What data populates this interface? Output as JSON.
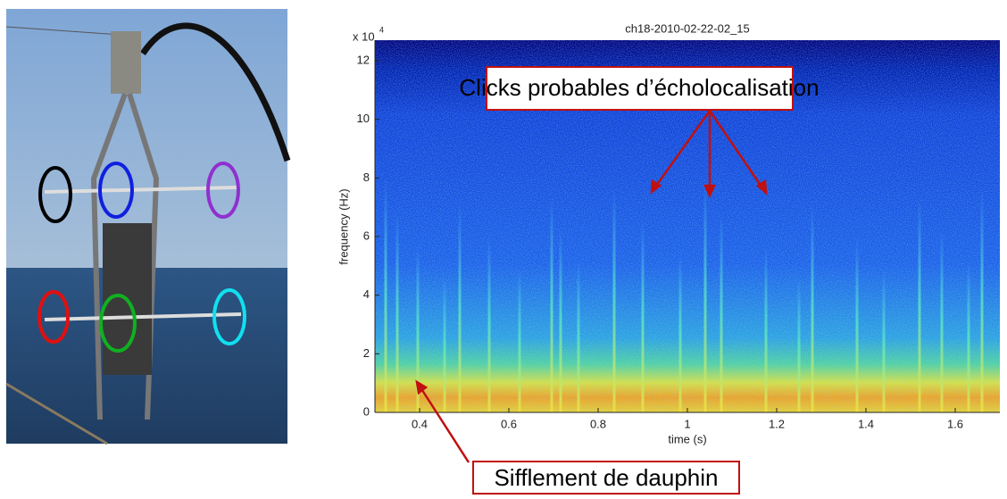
{
  "chart_data": {
    "type": "spectrogram",
    "title": "ch18-2010-02-22-02_15",
    "xlabel": "time (s)",
    "ylabel": "frequency (Hz)",
    "y_multiplier": "x 10",
    "y_multiplier_exponent": "4",
    "xlim": [
      0.3,
      1.7
    ],
    "ylim": [
      0,
      12.7
    ],
    "xticks": [
      0.4,
      0.6,
      0.8,
      1,
      1.2,
      1.4,
      1.6
    ],
    "yticks": [
      0,
      2,
      4,
      6,
      8,
      10,
      12
    ],
    "annotations": [
      "Clicks probables d’écholocalisation",
      "Sifflement de dauphin"
    ]
  }
}
